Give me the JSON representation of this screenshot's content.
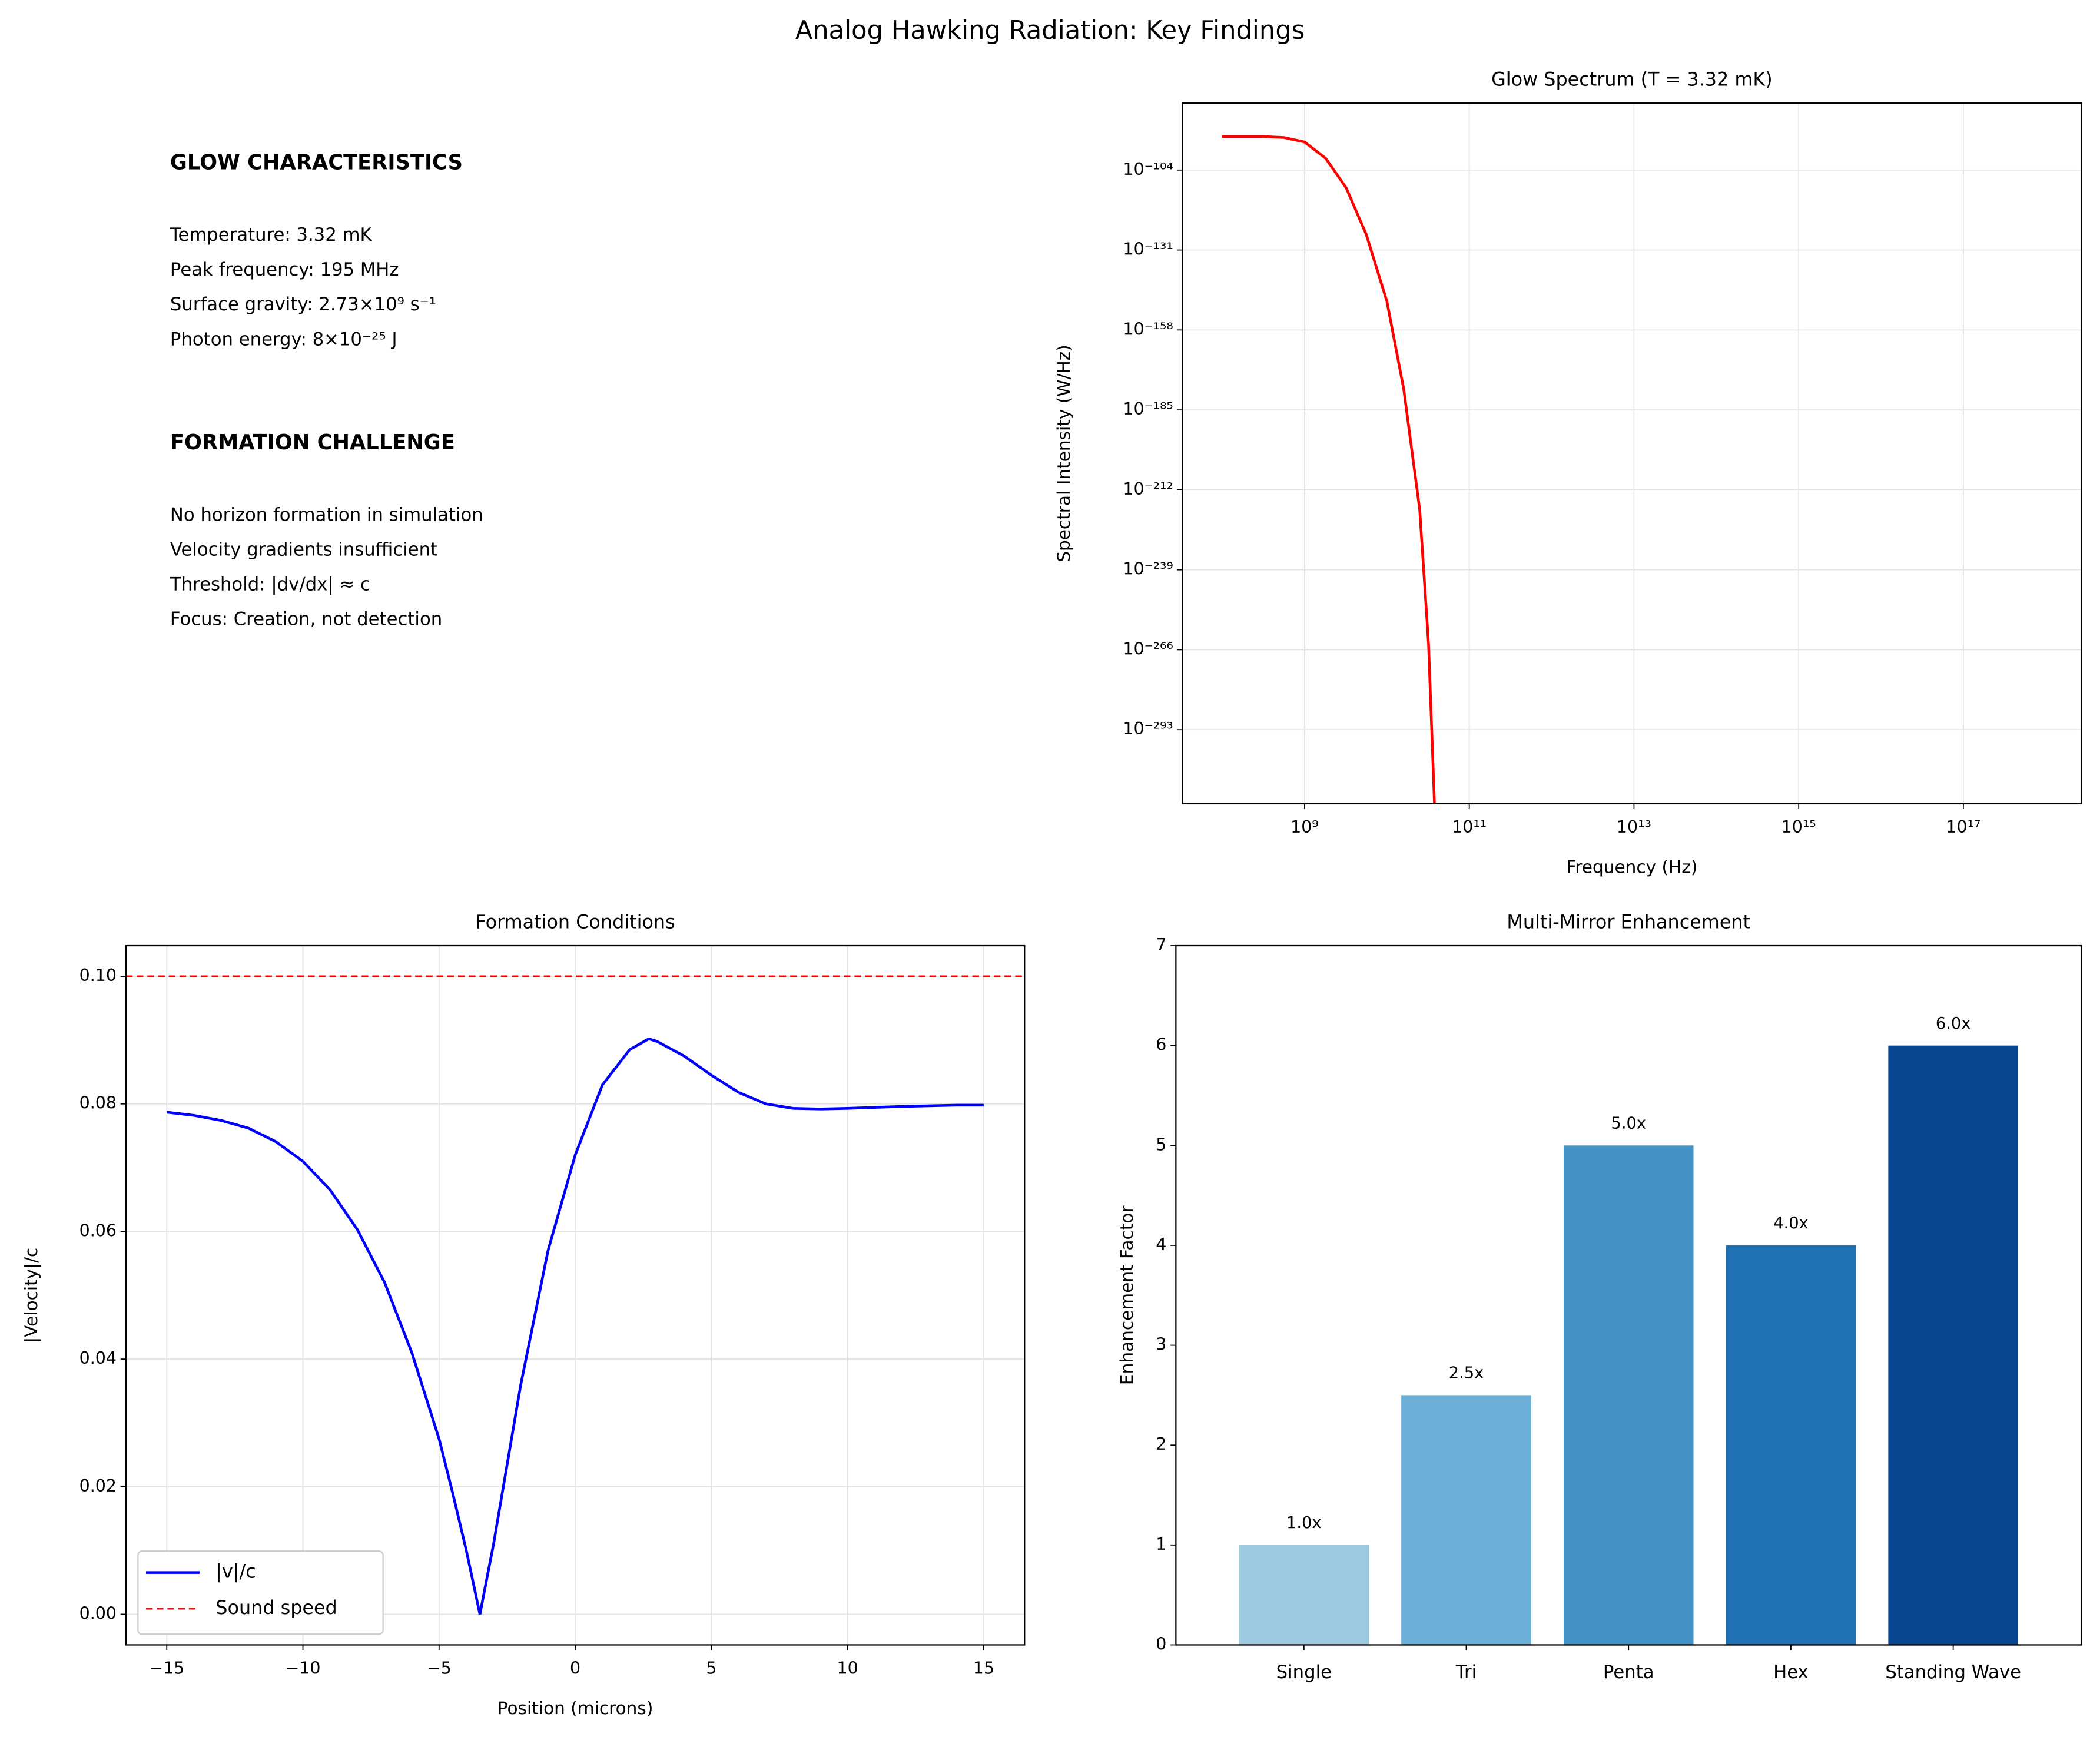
{
  "title": "Analog Hawking Radiation: Key Findings",
  "text_panel": {
    "sections": [
      {
        "heading": "GLOW CHARACTERISTICS",
        "lines": [
          "Temperature: 3.32 mK",
          "Peak frequency: 195 MHz",
          "Surface gravity: 2.73×10⁹ s⁻¹",
          "Photon energy: 8×10⁻²⁵ J"
        ]
      },
      {
        "heading": "FORMATION CHALLENGE",
        "lines": [
          "No horizon formation in simulation",
          "Velocity gradients insufficient",
          "Threshold: |dv/dx| ≈ c",
          "Focus: Creation, not detection"
        ]
      }
    ]
  },
  "chart_data": [
    {
      "type": "line",
      "title": "Glow Spectrum (T = 3.32 mK)",
      "x_label": "Frequency (Hz)",
      "y_label": "Spectral Intensity (W/Hz)",
      "xscale": "log",
      "yscale": "log",
      "grid": true,
      "xlim": [
        33000000.0,
        2.7e+18
      ],
      "ylim": [
        1e-318,
        4e-82
      ],
      "xticks": [
        {
          "value": 1000000000.0,
          "label": "10⁹"
        },
        {
          "value": 100000000000.0,
          "label": "10¹¹"
        },
        {
          "value": 10000000000000.0,
          "label": "10¹³"
        },
        {
          "value": 1000000000000000.0,
          "label": "10¹⁵"
        },
        {
          "value": 1e+17,
          "label": "10¹⁷"
        }
      ],
      "yticks": [
        {
          "value": 1e-104,
          "label": "10⁻¹⁰⁴"
        },
        {
          "value": 1e-131,
          "label": "10⁻¹³¹"
        },
        {
          "value": 1e-158,
          "label": "10⁻¹⁵⁸"
        },
        {
          "value": 1e-185,
          "label": "10⁻¹⁸⁵"
        },
        {
          "value": 1e-212,
          "label": "10⁻²¹²"
        },
        {
          "value": 1e-239,
          "label": "10⁻²³⁹"
        },
        {
          "value": 1e-266,
          "label": "10⁻²⁶⁶"
        },
        {
          "value": 1e-293,
          "label": "10⁻²⁹³"
        }
      ],
      "series": [
        {
          "color": "#ff0000",
          "x": [
            100000000.0,
            320000000.0,
            560000000.0,
            1000000000.0,
            1800000000.0,
            3200000000.0,
            5600000000.0,
            10000000000.0,
            16000000000.0,
            25000000000.0,
            32000000000.0,
            38000000000.0
          ],
          "values": [
            2e-93,
            2e-93,
            1e-93,
            3e-95,
            1e-100,
            1e-110,
            2e-126,
            4e-149,
            1e-178,
            2e-219,
            1e-264,
            1e-320
          ]
        }
      ]
    },
    {
      "type": "line",
      "title": "Formation Conditions",
      "x_label": "Position (microns)",
      "y_label": "|Velocity|/c",
      "grid": true,
      "legend": "lower left",
      "xlim": [
        -16.5,
        16.5
      ],
      "ylim": [
        -0.0048,
        0.1048
      ],
      "xticks": [
        {
          "value": -15,
          "label": "−15"
        },
        {
          "value": -10,
          "label": "−10"
        },
        {
          "value": -5,
          "label": "−5"
        },
        0,
        5,
        10,
        15
      ],
      "yticks": [
        {
          "value": 0,
          "label": "0.00"
        },
        {
          "value": 0.02,
          "label": "0.02"
        },
        {
          "value": 0.04,
          "label": "0.04"
        },
        {
          "value": 0.06,
          "label": "0.06"
        },
        {
          "value": 0.08,
          "label": "0.08"
        },
        {
          "value": 0.1,
          "label": "0.10"
        }
      ],
      "series": [
        {
          "name": "|v|/c",
          "color": "#0000ff",
          "x": [
            -15,
            -14,
            -13,
            -12,
            -11,
            -10,
            -9,
            -8,
            -7,
            -6,
            -5,
            -4.5,
            -4,
            -3.5,
            -3,
            -2,
            -1,
            0,
            1,
            2,
            2.7,
            3,
            4,
            5,
            6,
            7,
            8,
            9,
            10,
            12,
            14,
            15
          ],
          "values": [
            0.0787,
            0.0782,
            0.0774,
            0.0762,
            0.0741,
            0.071,
            0.0665,
            0.0603,
            0.052,
            0.041,
            0.0275,
            0.019,
            0.01,
            0.0,
            0.011,
            0.036,
            0.057,
            0.072,
            0.083,
            0.0885,
            0.0902,
            0.0898,
            0.0875,
            0.0845,
            0.0818,
            0.08,
            0.0793,
            0.0792,
            0.0793,
            0.0796,
            0.0798,
            0.0798
          ]
        },
        {
          "name": "Sound speed",
          "color": "#ff0000",
          "dashed": true,
          "x": [
            -16.5,
            16.5
          ],
          "values": [
            0.1,
            0.1
          ]
        }
      ]
    },
    {
      "type": "bar",
      "title": "Multi-Mirror Enhancement",
      "y_label": "Enhancement Factor",
      "ylim": [
        0,
        7
      ],
      "yticks": [
        0,
        1,
        2,
        3,
        4,
        5,
        6,
        7
      ],
      "categories": [
        "Single",
        "Tri",
        "Penta",
        "Hex",
        "Standing Wave"
      ],
      "values": [
        1.0,
        2.5,
        5.0,
        4.0,
        6.0
      ],
      "value_labels": [
        "1.0x",
        "2.5x",
        "5.0x",
        "4.0x",
        "6.0x"
      ],
      "colors": [
        "#9ecae1",
        "#6baed6",
        "#4292c6",
        "#2171b5",
        "#08458f"
      ]
    }
  ]
}
